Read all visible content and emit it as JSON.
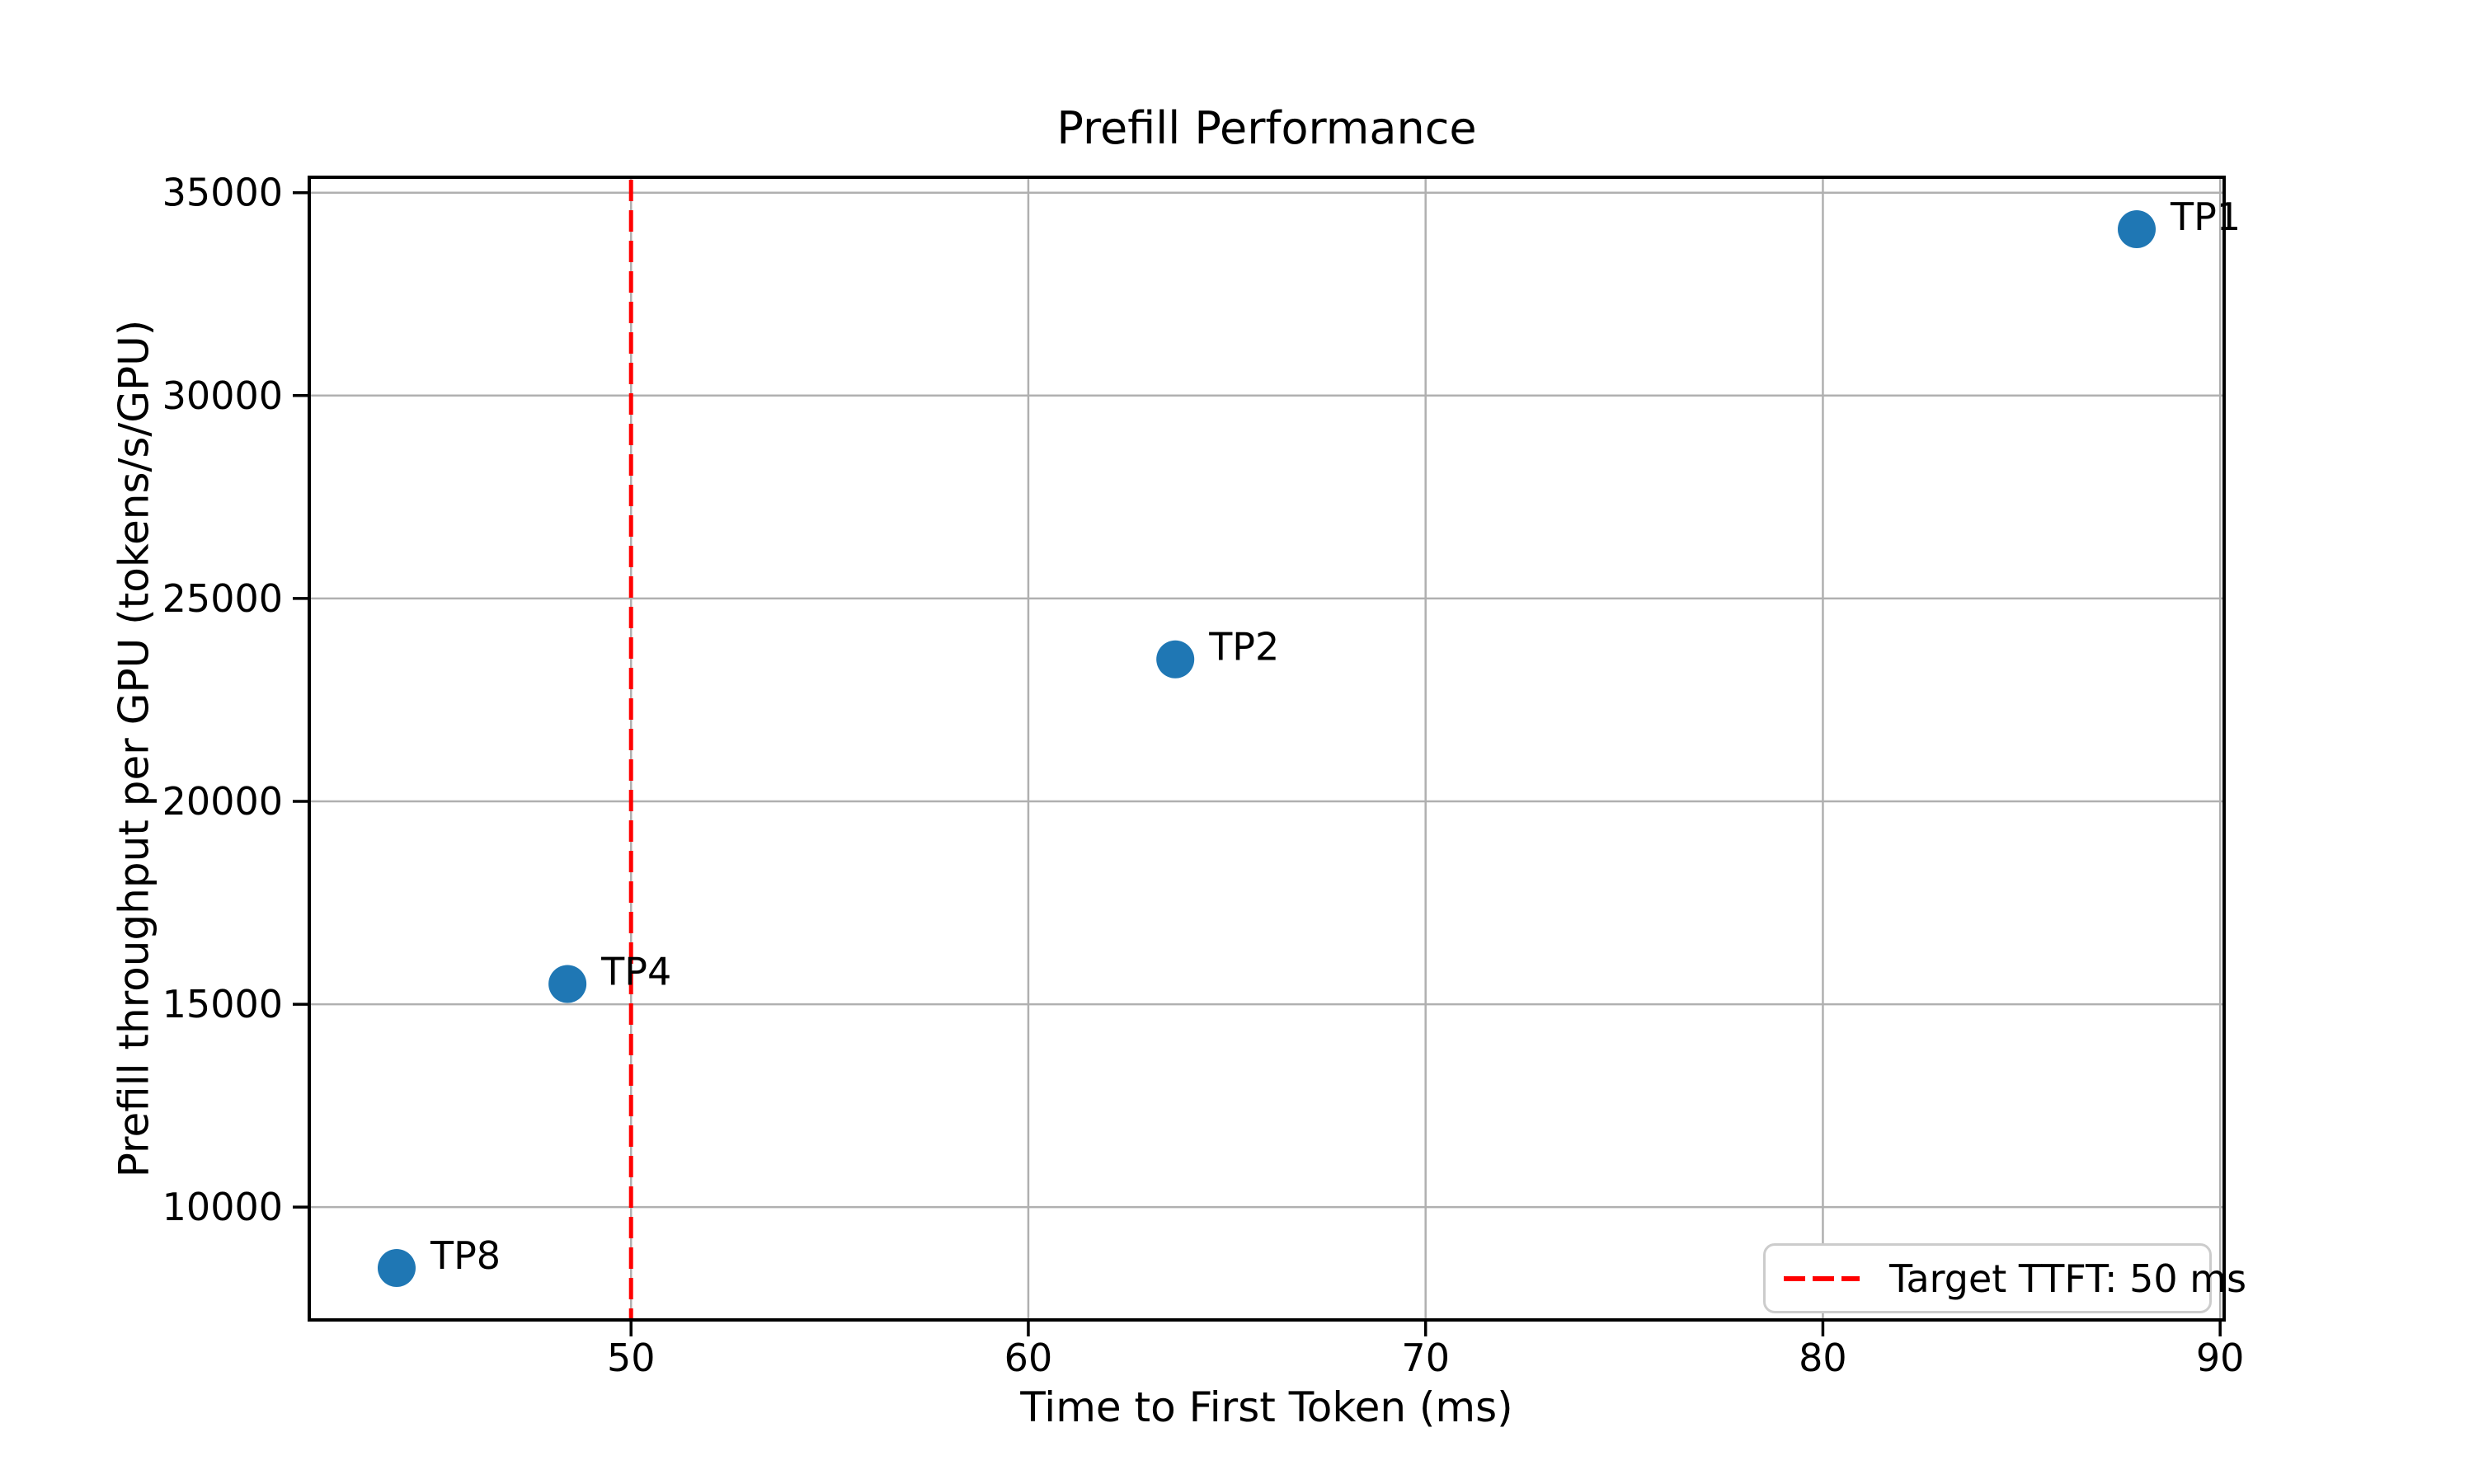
{
  "chart_data": {
    "type": "scatter",
    "title": "Prefill Performance",
    "xlabel": "Time to First Token (ms)",
    "ylabel": "Prefill throughput per GPU (tokens/s/GPU)",
    "xlim": [
      41.9,
      90.1
    ],
    "ylim": [
      7220,
      35380
    ],
    "x_ticks": [
      50,
      60,
      70,
      80,
      90
    ],
    "x_tick_labels": [
      "50",
      "60",
      "70",
      "80",
      "90"
    ],
    "y_ticks": [
      10000,
      15000,
      20000,
      25000,
      30000,
      35000
    ],
    "y_tick_labels": [
      "10000",
      "15000",
      "20000",
      "25000",
      "30000",
      "35000"
    ],
    "grid": true,
    "legend_position": "lower right",
    "points": [
      {
        "label": "TP1",
        "x": 87.9,
        "y": 34100
      },
      {
        "label": "TP2",
        "x": 63.7,
        "y": 23500
      },
      {
        "label": "TP4",
        "x": 48.4,
        "y": 15500
      },
      {
        "label": "TP8",
        "x": 44.1,
        "y": 8500
      }
    ],
    "target_line": {
      "x": 50,
      "label": "Target TTFT: 50 ms",
      "style": "dashed"
    },
    "colors": {
      "point": "#1f77b4",
      "target": "#ff0000",
      "grid": "#b0b0b0",
      "axes": "#000000",
      "legend_border": "#cccccc"
    }
  }
}
